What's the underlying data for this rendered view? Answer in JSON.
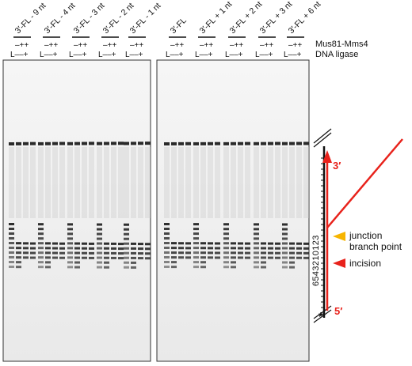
{
  "lanes": {
    "left": [
      "3′-FL - 9 nt",
      "3′-FL - 4 nt",
      "3′-FL - 3 nt",
      "3′-FL - 2 nt",
      "3′-FL - 1 nt"
    ],
    "right": [
      "3′-FL",
      "3′-FL + 1 nt",
      "3′-FL + 2 nt",
      "3′-FL + 3 nt",
      "3′-FL + 6 nt"
    ]
  },
  "rows": {
    "mus81": "Mus81-Mms4",
    "ligase": "DNA ligase",
    "mus81_symbols": "–++",
    "ligase_symbols": "L––+"
  },
  "diagram": {
    "three_prime": "3′",
    "five_prime": "5′",
    "numbers": "6543210123",
    "junction": "junction",
    "branch_point": "branch point",
    "incision": "incision",
    "star": "*"
  },
  "colors": {
    "red": "#e8221b",
    "yellow": "#f7b500",
    "gel_bg": "#f2f2f2",
    "band": "#222222"
  }
}
